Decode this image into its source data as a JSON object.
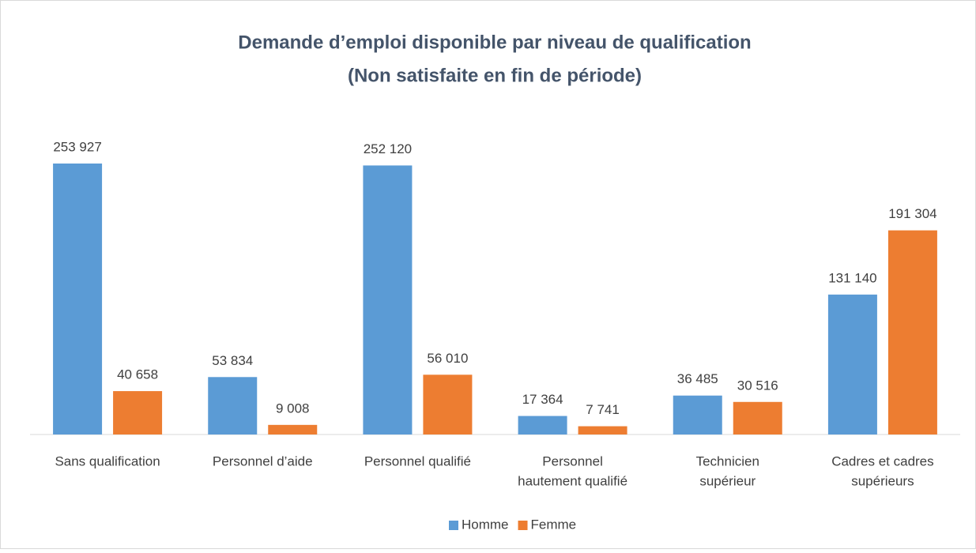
{
  "chart_data": {
    "type": "bar",
    "title": [
      "Demande d’emploi disponible par niveau de qualification",
      "(Non satisfaite en fin de période)"
    ],
    "categories": [
      "Sans qualification",
      "Personnel d’aide",
      "Personnel qualifié",
      [
        "Personnel",
        "hautement qualifié"
      ],
      [
        "Technicien",
        "supérieur"
      ],
      [
        "Cadres et cadres",
        "supérieurs"
      ]
    ],
    "series": [
      {
        "name": "Homme",
        "color": "#5b9bd5",
        "values": [
          253927,
          53834,
          252120,
          17364,
          36485,
          131140
        ],
        "value_labels": [
          "253 927",
          "53 834",
          "252 120",
          "17 364",
          "36 485",
          "131 140"
        ]
      },
      {
        "name": "Femme",
        "color": "#ed7d31",
        "values": [
          40658,
          9008,
          56010,
          7741,
          30516,
          191304
        ],
        "value_labels": [
          "40 658",
          "9 008",
          "56 010",
          "7 741",
          "30 516",
          "191 304"
        ]
      }
    ],
    "legend": "bottom"
  }
}
